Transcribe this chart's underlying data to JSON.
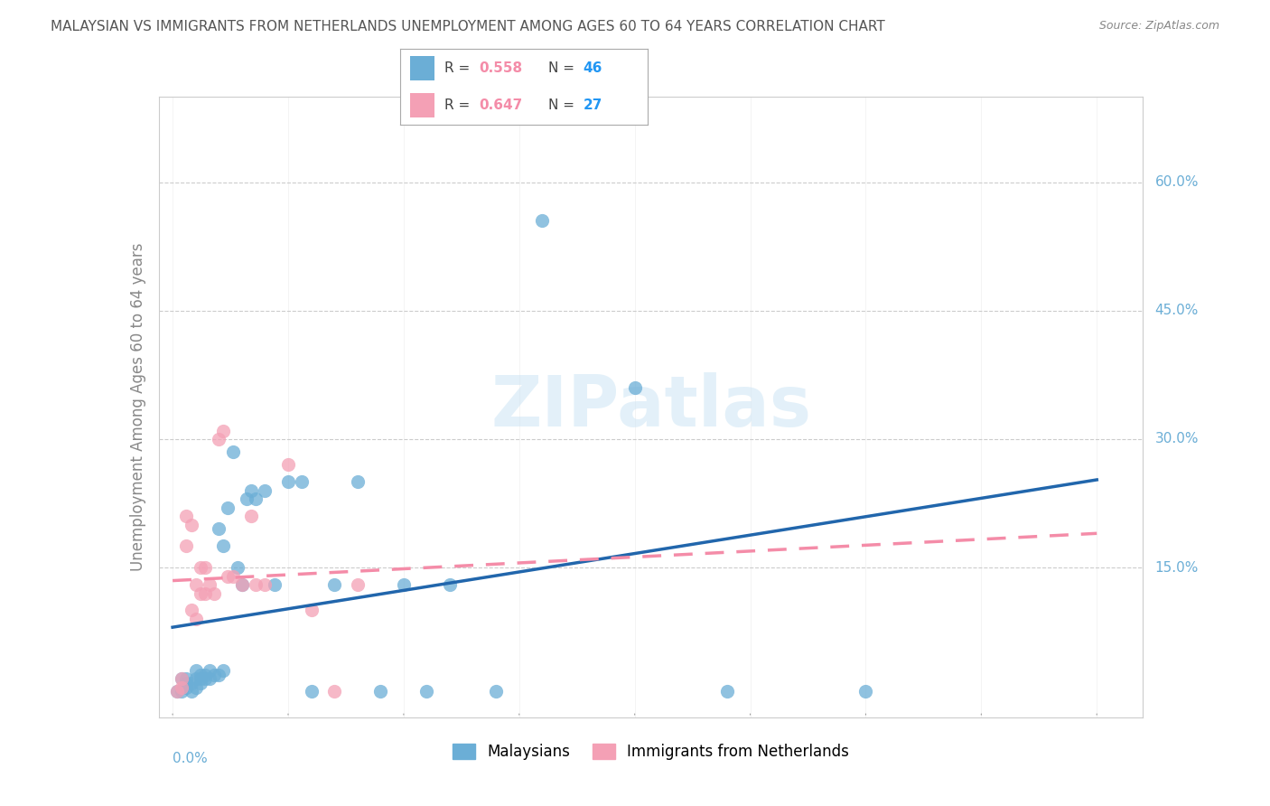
{
  "title": "MALAYSIAN VS IMMIGRANTS FROM NETHERLANDS UNEMPLOYMENT AMONG AGES 60 TO 64 YEARS CORRELATION CHART",
  "source": "Source: ZipAtlas.com",
  "ylabel": "Unemployment Among Ages 60 to 64 years",
  "watermark": "ZIPatlas",
  "legend_r1": "0.558",
  "legend_n1": "46",
  "legend_r2": "0.647",
  "legend_n2": "27",
  "blue_color": "#6baed6",
  "pink_color": "#f4a0b5",
  "blue_line_color": "#2166ac",
  "pink_line_color": "#f48ca8",
  "axis_label_color": "#6baed6",
  "title_color": "#555555",
  "source_color": "#888888",
  "ylabel_color": "#888888",
  "grid_color": "#cccccc",
  "tick_color": "#999999",
  "legend_r_color": "#f48ca8",
  "legend_n_color": "#2196F3",
  "ytick_vals": [
    0.15,
    0.3,
    0.45,
    0.6
  ],
  "ytick_labels": [
    "15.0%",
    "30.0%",
    "45.0%",
    "60.0%"
  ],
  "mal_x": [
    0.001,
    0.002,
    0.002,
    0.003,
    0.003,
    0.003,
    0.004,
    0.004,
    0.005,
    0.005,
    0.005,
    0.006,
    0.006,
    0.006,
    0.007,
    0.007,
    0.008,
    0.008,
    0.009,
    0.01,
    0.01,
    0.011,
    0.011,
    0.012,
    0.013,
    0.014,
    0.015,
    0.016,
    0.017,
    0.018,
    0.02,
    0.022,
    0.025,
    0.028,
    0.03,
    0.035,
    0.04,
    0.045,
    0.05,
    0.055,
    0.06,
    0.07,
    0.08,
    0.1,
    0.12,
    0.15
  ],
  "mal_y": [
    0.005,
    0.005,
    0.02,
    0.01,
    0.015,
    0.02,
    0.005,
    0.015,
    0.01,
    0.02,
    0.03,
    0.015,
    0.02,
    0.025,
    0.02,
    0.025,
    0.02,
    0.03,
    0.025,
    0.025,
    0.195,
    0.175,
    0.03,
    0.22,
    0.285,
    0.15,
    0.13,
    0.23,
    0.24,
    0.23,
    0.24,
    0.13,
    0.25,
    0.25,
    0.005,
    0.13,
    0.25,
    0.005,
    0.13,
    0.005,
    0.13,
    0.005,
    0.555,
    0.36,
    0.005,
    0.005
  ],
  "neth_x": [
    0.001,
    0.002,
    0.002,
    0.003,
    0.003,
    0.004,
    0.004,
    0.005,
    0.005,
    0.006,
    0.006,
    0.007,
    0.007,
    0.008,
    0.009,
    0.01,
    0.011,
    0.012,
    0.013,
    0.015,
    0.017,
    0.018,
    0.02,
    0.025,
    0.03,
    0.035,
    0.04
  ],
  "neth_y": [
    0.005,
    0.01,
    0.02,
    0.175,
    0.21,
    0.1,
    0.2,
    0.13,
    0.09,
    0.12,
    0.15,
    0.12,
    0.15,
    0.13,
    0.12,
    0.3,
    0.31,
    0.14,
    0.14,
    0.13,
    0.21,
    0.13,
    0.13,
    0.27,
    0.1,
    0.005,
    0.13
  ]
}
